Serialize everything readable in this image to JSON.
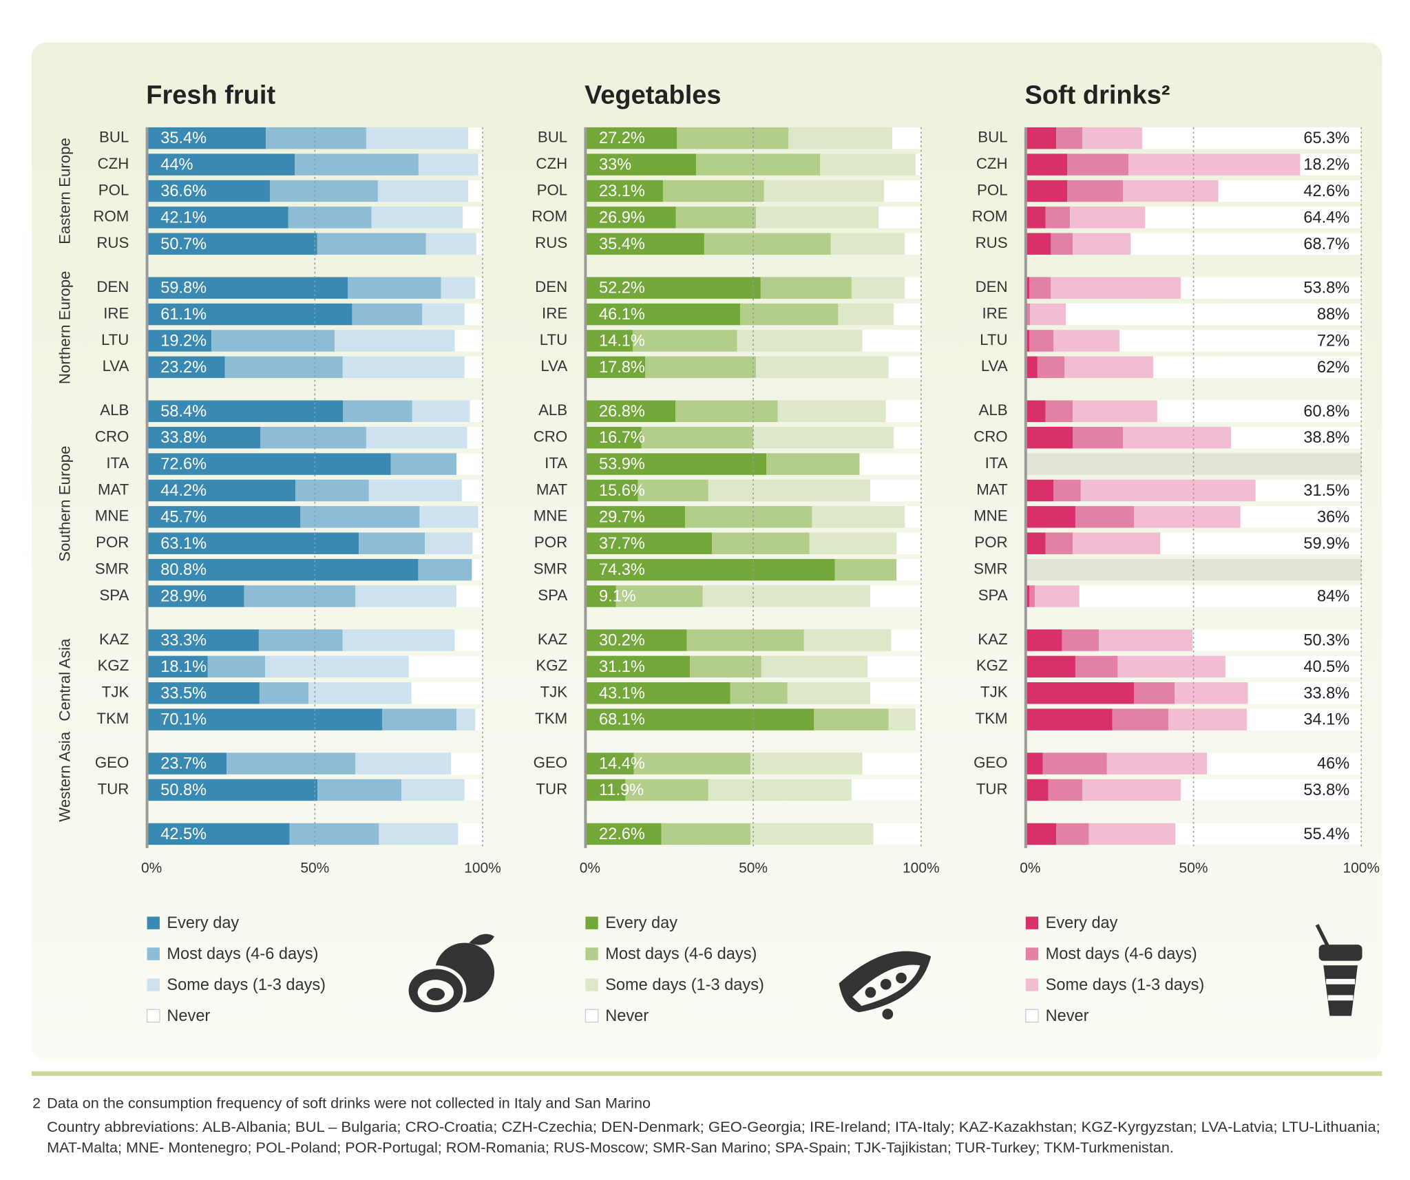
{
  "chart_data": [
    {
      "type": "bar",
      "orientation": "horizontal",
      "stacked": true,
      "title": "Fresh fruit",
      "categories": [
        "BUL",
        "CZH",
        "POL",
        "ROM",
        "RUS",
        "DEN",
        "IRE",
        "LTU",
        "LVA",
        "ALB",
        "CRO",
        "ITA",
        "MAT",
        "MNE",
        "POR",
        "SMR",
        "SPA",
        "KAZ",
        "KGZ",
        "TJK",
        "TKM",
        "GEO",
        "TUR",
        null
      ],
      "series": [
        {
          "name": "Every day",
          "color": "#3a89b2",
          "values": [
            35.4,
            44,
            36.6,
            42.1,
            50.7,
            59.8,
            61.1,
            19.2,
            23.2,
            58.4,
            33.8,
            72.6,
            44.2,
            45.7,
            63.1,
            80.8,
            28.9,
            33.3,
            18.1,
            33.5,
            70.1,
            23.7,
            50.8,
            42.5
          ],
          "value_labels": [
            "35.4%",
            "44%",
            "36.6%",
            "42.1%",
            "50.7%",
            "59.8%",
            "61.1%",
            "19.2%",
            "23.2%",
            "58.4%",
            "33.8%",
            "72.6%",
            "44.2%",
            "45.7%",
            "63.1%",
            "80.8%",
            "28.9%",
            "33.3%",
            "18.1%",
            "33.5%",
            "70.1%",
            "23.7%",
            "50.8%",
            "42.5%"
          ]
        },
        {
          "name": "Most days (4-6 days)",
          "color": "#8fbcd5",
          "values": [
            29.9,
            36.9,
            32.2,
            24.8,
            32.4,
            27.8,
            20.9,
            36.7,
            35.1,
            20.6,
            31.5,
            19.6,
            21.9,
            35.5,
            19.7,
            16.0,
            33.2,
            25.0,
            17.1,
            14.6,
            22.1,
            38.4,
            25.0,
            26.6
          ]
        },
        {
          "name": "Some days (1-3 days)",
          "color": "#cde2ee",
          "values": [
            30.4,
            17.8,
            26.9,
            27.2,
            15.0,
            10.2,
            12.6,
            35.8,
            36.3,
            17.2,
            30.1,
            0,
            27.7,
            17.5,
            14.2,
            0,
            30.1,
            33.4,
            42.8,
            30.7,
            5.6,
            28.5,
            18.8,
            23.6
          ]
        },
        {
          "name": "Never",
          "color": "#ffffff",
          "values": [
            4.3,
            1.3,
            4.3,
            5.9,
            1.9,
            2.2,
            5.4,
            8.3,
            5.4,
            3.8,
            4.6,
            7.8,
            6.2,
            1.3,
            3.0,
            3.2,
            7.8,
            8.3,
            22.0,
            21.2,
            2.2,
            9.4,
            5.4,
            7.3
          ]
        }
      ],
      "xlim": [
        0,
        100
      ],
      "xticks": [
        {
          "value": 0,
          "label": "0%"
        },
        {
          "value": 50,
          "label": "50%"
        },
        {
          "value": 100,
          "label": "100%"
        }
      ],
      "grid": true
    },
    {
      "type": "bar",
      "orientation": "horizontal",
      "stacked": true,
      "title": "Vegetables",
      "categories": [
        "BUL",
        "CZH",
        "POL",
        "ROM",
        "RUS",
        "DEN",
        "IRE",
        "LTU",
        "LVA",
        "ALB",
        "CRO",
        "ITA",
        "MAT",
        "MNE",
        "POR",
        "SMR",
        "SPA",
        "KAZ",
        "KGZ",
        "TJK",
        "TKM",
        "GEO",
        "TUR",
        null
      ],
      "series": [
        {
          "name": "Every day",
          "color": "#74a73a",
          "values": [
            27.2,
            33,
            23.1,
            26.9,
            35.4,
            52.2,
            46.1,
            14.1,
            17.8,
            26.8,
            16.7,
            53.9,
            15.6,
            29.7,
            37.7,
            74.3,
            9.1,
            30.2,
            31.1,
            43.1,
            68.1,
            14.4,
            11.9,
            22.6
          ],
          "value_labels": [
            "27.2%",
            "33%",
            "23.1%",
            "26.9%",
            "35.4%",
            "52.2%",
            "46.1%",
            "14.1%",
            "17.8%",
            "26.8%",
            "16.7%",
            "53.9%",
            "15.6%",
            "29.7%",
            "37.7%",
            "74.3%",
            "9.1%",
            "30.2%",
            "31.1%",
            "43.1%",
            "68.1%",
            "14.4%",
            "11.9%",
            "22.6%"
          ]
        },
        {
          "name": "Most days (4-6 days)",
          "color": "#b3cd8b",
          "values": [
            33.3,
            36.9,
            30.1,
            23.9,
            37.7,
            27.1,
            29.2,
            31.1,
            33.0,
            30.5,
            33.3,
            27.8,
            21.0,
            37.8,
            29.0,
            18.4,
            25.8,
            34.9,
            21.3,
            17.1,
            22.2,
            34.8,
            24.7,
            26.6
          ]
        },
        {
          "name": "Some days (1-3 days)",
          "color": "#dce8c7",
          "values": [
            30.9,
            28.5,
            35.8,
            36.6,
            22.1,
            15.9,
            16.6,
            37.3,
            39.5,
            32.2,
            41.9,
            0,
            48.3,
            27.7,
            26.0,
            0,
            50.0,
            26.0,
            31.7,
            24.7,
            8.1,
            33.3,
            42.7,
            36.6
          ]
        },
        {
          "name": "Never",
          "color": "#ffffff",
          "values": [
            8.6,
            1.6,
            11.0,
            12.6,
            4.8,
            4.8,
            8.1,
            17.5,
            9.7,
            10.5,
            8.1,
            18.3,
            15.1,
            4.8,
            7.3,
            7.3,
            15.1,
            8.9,
            15.9,
            15.1,
            1.6,
            17.5,
            20.7,
            14.2
          ]
        }
      ],
      "xlim": [
        0,
        100
      ],
      "xticks": [
        {
          "value": 0,
          "label": "0%"
        },
        {
          "value": 50,
          "label": "50%"
        },
        {
          "value": 100,
          "label": "100%"
        }
      ],
      "grid": true
    },
    {
      "type": "bar",
      "orientation": "horizontal",
      "stacked": true,
      "title": "Soft drinks²",
      "categories": [
        "BUL",
        "CZH",
        "POL",
        "ROM",
        "RUS",
        "DEN",
        "IRE",
        "LTU",
        "LVA",
        "ALB",
        "CRO",
        "ITA",
        "MAT",
        "MNE",
        "POR",
        "SMR",
        "SPA",
        "KAZ",
        "KGZ",
        "TJK",
        "TKM",
        "GEO",
        "TUR",
        null
      ],
      "series": [
        {
          "name": "Every day",
          "color": "#d7306b",
          "values": [
            9.1,
            12.4,
            12.4,
            5.9,
            7.5,
            1.1,
            0.5,
            1.1,
            3.5,
            5.9,
            14.0,
            null,
            8.3,
            14.8,
            5.9,
            null,
            1.1,
            10.8,
            14.8,
            32.3,
            25.8,
            5.1,
            6.7,
            9.1
          ]
        },
        {
          "name": "Most days (4-6 days)",
          "color": "#e280a6",
          "values": [
            7.8,
            18.2,
            16.6,
            7.3,
            6.5,
            6.4,
            0.8,
            7.2,
            8.1,
            8.1,
            15.0,
            null,
            8.1,
            17.5,
            8.1,
            null,
            1.6,
            11.0,
            12.6,
            12.1,
            16.7,
            19.1,
            10.2,
            9.7
          ]
        },
        {
          "name": "Some days (1-3 days)",
          "color": "#f2bdd2",
          "values": [
            17.8,
            51.2,
            28.4,
            22.4,
            17.3,
            38.7,
            10.7,
            19.7,
            26.4,
            25.2,
            32.2,
            null,
            52.1,
            31.7,
            26.1,
            null,
            13.3,
            27.9,
            32.1,
            21.8,
            23.4,
            29.8,
            29.3,
            25.8
          ]
        },
        {
          "name": "Never",
          "color": "#ffffff",
          "values": [
            65.3,
            18.2,
            42.6,
            64.4,
            68.7,
            53.8,
            88,
            72,
            62,
            60.8,
            38.8,
            null,
            31.5,
            36,
            59.9,
            null,
            84,
            50.3,
            40.5,
            33.8,
            34.1,
            46,
            53.8,
            55.4
          ],
          "value_labels": [
            "65.3%",
            "18.2%",
            "42.6%",
            "64.4%",
            "68.7%",
            "53.8%",
            "88%",
            "72%",
            "62%",
            "60.8%",
            "38.8%",
            null,
            "31.5%",
            "36%",
            "59.9%",
            null,
            "84%",
            "50.3%",
            "40.5%",
            "33.8%",
            "34.1%",
            "46%",
            "53.8%",
            "55.4%"
          ]
        }
      ],
      "xlim": [
        0,
        100
      ],
      "xticks": [
        {
          "value": 0,
          "label": "0%"
        },
        {
          "value": 50,
          "label": "50%"
        },
        {
          "value": 100,
          "label": "100%"
        }
      ],
      "grid": true
    }
  ],
  "row_groups": [
    {
      "label": "Eastern Europe",
      "categories": [
        "BUL",
        "CZH",
        "POL",
        "ROM",
        "RUS"
      ]
    },
    {
      "label": "Northern Europe",
      "categories": [
        "DEN",
        "IRE",
        "LTU",
        "LVA"
      ]
    },
    {
      "label": "Southern Europe",
      "categories": [
        "ALB",
        "CRO",
        "ITA",
        "MAT",
        "MNE",
        "POR",
        "SMR",
        "SPA"
      ]
    },
    {
      "label": "Central Asia",
      "categories": [
        "KAZ",
        "KGZ",
        "TJK",
        "TKM"
      ]
    },
    {
      "label": "Western Asia",
      "categories": [
        "GEO",
        "TUR"
      ]
    }
  ],
  "footnotes": {
    "number": "2",
    "note": "Data on the consumption frequency of soft drinks were not collected in Italy and San Marino",
    "abbreviations": [
      "Country abbreviations: ALB-Albania; BUL – Bulgaria; CRO-Croatia; CZH-Czechia; DEN-Denmark; GEO-Georgia; IRE-Ireland;  ITA-Italy; KAZ-Kazakhstan; KGZ-Kyrgyzstan; LVA-Latvia; LTU-Lithuania;",
      "MAT-Malta; MNE- Montenegro; POL-Poland; POR-Portugal; ROM-Romania; RUS-Moscow; SMR-San Marino; SPA-Spain; TJK-Tajikistan; TUR-Turkey; TKM-Turkmenistan."
    ]
  }
}
